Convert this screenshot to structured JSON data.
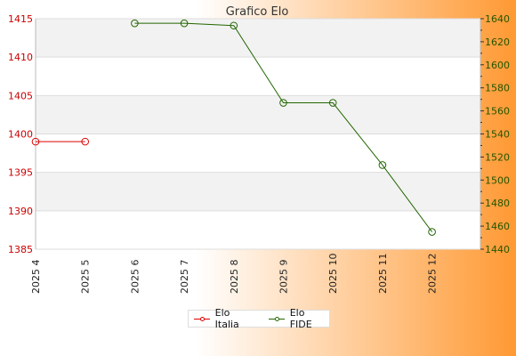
{
  "colors": {
    "series_italia": "#dd0000",
    "series_fide": "#226600",
    "left_axis_text": "#cc0000",
    "right_axis_text": "#225500",
    "band": "#f2f2f2",
    "grid": "#dddddd",
    "bg_left": "#ffffff",
    "bg_right": "#ff9933"
  },
  "chart_data": {
    "type": "line",
    "title": "Grafico Elo",
    "categories": [
      "2025 4",
      "2025 5",
      "2025 6",
      "2025 7",
      "2025 8",
      "2025 9",
      "2025 10",
      "2025 11",
      "2025 12"
    ],
    "ylim_left": [
      1385,
      1415
    ],
    "yticks_left": [
      1385,
      1390,
      1395,
      1400,
      1405,
      1410,
      1415
    ],
    "ylim_right": [
      1440,
      1640
    ],
    "yticks_right": [
      1440,
      1460,
      1480,
      1500,
      1520,
      1540,
      1560,
      1580,
      1600,
      1620,
      1640
    ],
    "grid": true,
    "legend_position": "bottom-center",
    "series": [
      {
        "name": "Elo Italia",
        "axis": "left",
        "values": [
          1399,
          1399,
          null,
          null,
          null,
          null,
          null,
          null,
          null
        ]
      },
      {
        "name": "Elo FIDE",
        "axis": "right",
        "values": [
          null,
          null,
          1636,
          1636,
          1634,
          1567,
          1567,
          1513,
          1455
        ]
      }
    ]
  }
}
